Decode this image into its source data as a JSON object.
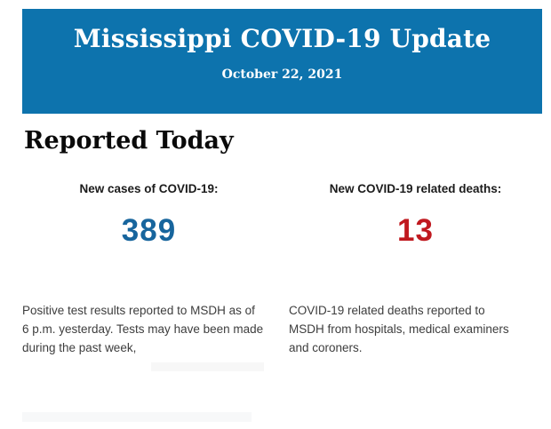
{
  "banner": {
    "title": "Mississippi COVID-19 Update",
    "date": "October 22, 2021",
    "background_color": "#0d73ad",
    "text_color": "#ffffff"
  },
  "report": {
    "heading": "Reported Today",
    "stats": [
      {
        "label": "New cases of COVID-19:",
        "value": "389",
        "value_color": "#17659d",
        "description": "Positive test results reported to MSDH as of 6 p.m. yesterday. Tests may have been made during the past week,"
      },
      {
        "label": "New COVID-19 related deaths:",
        "value": "13",
        "value_color": "#c0191f",
        "description": "COVID-19 related deaths reported to MSDH from hospitals, medical examiners and coroners."
      }
    ]
  }
}
